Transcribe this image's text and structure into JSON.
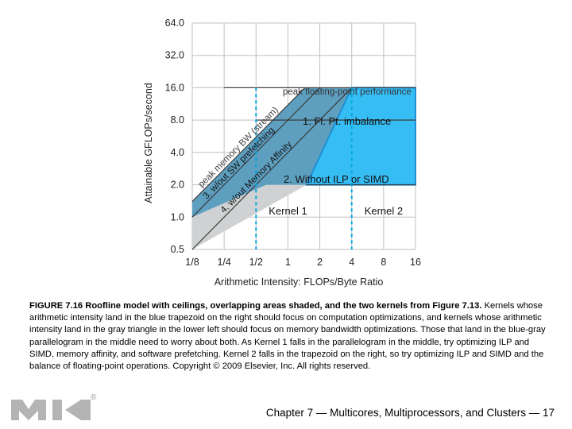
{
  "chart_data": {
    "type": "line",
    "title": "",
    "xlabel": "Arithmetic Intensity: FLOPs/Byte Ratio",
    "ylabel": "Attainable GFLOPs/second",
    "x_scale": "log2",
    "y_scale": "log2",
    "xlim": [
      0.125,
      16
    ],
    "ylim": [
      0.5,
      64
    ],
    "x_ticks": [
      {
        "value": 0.125,
        "label": "1/8"
      },
      {
        "value": 0.25,
        "label": "1/4"
      },
      {
        "value": 0.5,
        "label": "1/2"
      },
      {
        "value": 1,
        "label": "1"
      },
      {
        "value": 2,
        "label": "2"
      },
      {
        "value": 4,
        "label": "4"
      },
      {
        "value": 8,
        "label": "8"
      },
      {
        "value": 16,
        "label": "16"
      }
    ],
    "y_ticks": [
      {
        "value": 0.5,
        "label": "0.5"
      },
      {
        "value": 1,
        "label": "1.0"
      },
      {
        "value": 2,
        "label": "2.0"
      },
      {
        "value": 4,
        "label": "4.0"
      },
      {
        "value": 8,
        "label": "8.0"
      },
      {
        "value": 16,
        "label": "16.0"
      },
      {
        "value": 32,
        "label": "32.0"
      },
      {
        "value": 64,
        "label": "64.0"
      }
    ],
    "grid": true,
    "series": [
      {
        "name": "peak floating-point performance",
        "style": "horizontal",
        "y": 16,
        "x": [
          0.25,
          16
        ]
      },
      {
        "name": "1. Fl. Pt. imbalance",
        "style": "horizontal",
        "y": 8,
        "x": [
          0.5,
          16
        ]
      },
      {
        "name": "2. Without ILP or SIMD",
        "style": "horizontal",
        "y": 2,
        "x": [
          1.5,
          16
        ]
      },
      {
        "name": "peak memory BW (stream)",
        "style": "diagonal",
        "points": [
          [
            0.125,
            1.4
          ],
          [
            1.45,
            16
          ]
        ]
      },
      {
        "name": "3. w/out SW prefetching",
        "style": "diagonal",
        "points": [
          [
            0.125,
            1.0
          ],
          [
            2.0,
            16
          ]
        ]
      },
      {
        "name": "4. w/out Memory Affinity",
        "style": "diagonal",
        "points": [
          [
            0.125,
            0.5
          ],
          [
            4.0,
            16
          ]
        ]
      }
    ],
    "kernels": [
      {
        "name": "Kernel 1",
        "x": 0.5
      },
      {
        "name": "Kernel 2",
        "x": 4
      }
    ],
    "colors": {
      "blue_region": "#36bdf4",
      "gray_region": "#cfd1d2",
      "blue_gray_region": "#5e9fc0",
      "blue_edge": "#1e8fd4",
      "lines": "#3a3a3a",
      "dashed": "#00a8df",
      "grid": "#bfbfbf"
    }
  },
  "caption": {
    "title": "FIGURE 7.16 Roofline model with ceilings, overlapping areas shaded, and the two kernels from Figure 7.13.",
    "body": "Kernels whose arithmetic intensity land in the blue trapezoid on the right should focus on computation optimizations, and kernels whose arithmetic intensity land in the gray triangle in the lower left should focus on memory bandwidth optimizations. Those that land in the blue-gray parallelogram in the middle need to worry about both. As Kernel 1 falls in the parallelogram in the middle, try optimizing ILP and SIMD, memory affinity, and software prefetching. Kernel 2 falls in the trapezoid on the right, so try optimizing ILP and SIMD and the balance of floating-point operations. Copyright © 2009 Elsevier, Inc. All rights reserved."
  },
  "footer": {
    "text": "Chapter 7 — Multicores, Multiprocessors, and Clusters — 17"
  },
  "logo": {
    "icon": "mk-publisher-logo",
    "registered": "®",
    "color": "#b4b4b4"
  }
}
